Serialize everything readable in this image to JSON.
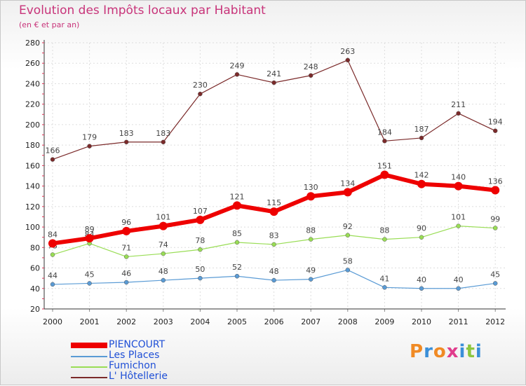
{
  "header": {
    "title": "Evolution des Impôts locaux par Habitant",
    "subtitle": "(en € et par an)"
  },
  "chart_data": {
    "type": "line",
    "title": "Evolution des Impôts locaux par Habitant",
    "subtitle": "(en € et par an)",
    "xlabel": "",
    "ylabel": "",
    "ylim": [
      20,
      280
    ],
    "yticks": [
      20,
      40,
      60,
      80,
      100,
      120,
      140,
      160,
      180,
      200,
      220,
      240,
      260,
      280
    ],
    "categories": [
      "2000",
      "2001",
      "2002",
      "2003",
      "2004",
      "2005",
      "2006",
      "2007",
      "2008",
      "2009",
      "2010",
      "2011",
      "2012"
    ],
    "series": [
      {
        "name": "PIENCOURT",
        "color": "#ee0000",
        "values": [
          84,
          89,
          96,
          101,
          107,
          121,
          115,
          130,
          134,
          151,
          142,
          140,
          136
        ]
      },
      {
        "name": "Les Places",
        "color": "#5a9bd5",
        "values": [
          44,
          45,
          46,
          48,
          50,
          52,
          48,
          49,
          58,
          41,
          40,
          40,
          45
        ]
      },
      {
        "name": "Fumichon",
        "color": "#99dd55",
        "values": [
          73,
          84,
          71,
          74,
          78,
          85,
          83,
          88,
          92,
          88,
          90,
          101,
          99
        ]
      },
      {
        "name": "L' Hôtellerie",
        "color": "#7b2a2a",
        "values": [
          166,
          179,
          183,
          183,
          230,
          249,
          241,
          248,
          263,
          184,
          187,
          211,
          194
        ]
      }
    ],
    "legend": [
      "PIENCOURT",
      "Les Places",
      "Fumichon",
      "L' Hôtellerie"
    ],
    "legend_position": "bottom-left"
  },
  "brand": {
    "letters": [
      "P",
      "r",
      "o",
      "x",
      "i",
      "t",
      "i"
    ],
    "colors": [
      "#f08a24",
      "#3a8fd8",
      "#f08a24",
      "#e03c8c",
      "#3a8fd8",
      "#8cc63f",
      "#3a8fd8"
    ]
  }
}
